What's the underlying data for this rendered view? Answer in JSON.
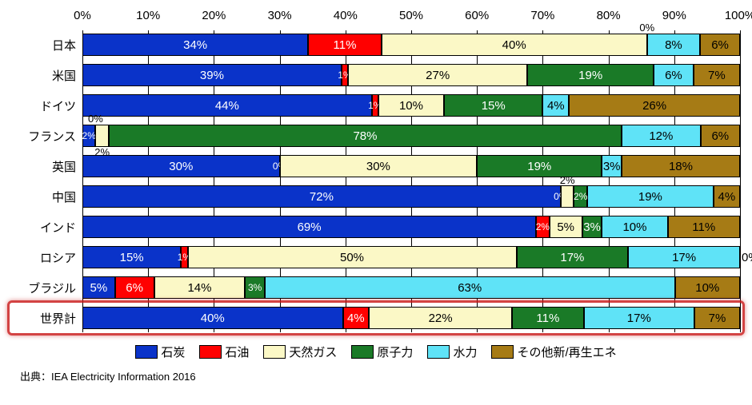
{
  "chart": {
    "type": "stacked-bar-horizontal",
    "xlim": [
      0,
      100
    ],
    "xtick_step": 10,
    "xtick_suffix": "%",
    "background_color": "#ffffff",
    "grid_color": "#000000",
    "label_fontsize": 15,
    "value_fontsize": 15,
    "categories": [
      "石炭",
      "石油",
      "天然ガス",
      "原子力",
      "水力",
      "その他新/再生エネ"
    ],
    "colors": {
      "石炭": "#0a33c9",
      "石油": "#ff0000",
      "天然ガス": "#fbf8c6",
      "原子力": "#1a7a27",
      "水力": "#5fe3f7",
      "その他新/再生エネ": "#a67b15"
    },
    "text_colors": {
      "石炭": "#ffffff",
      "石油": "#ffffff",
      "天然ガス": "#000000",
      "原子力": "#ffffff",
      "水力": "#000000",
      "その他新/再生エネ": "#000000"
    },
    "rows": [
      {
        "label": "日本",
        "values": [
          34,
          11,
          40,
          0,
          8,
          6
        ],
        "displays": [
          "34%",
          "11%",
          "40%",
          "0%",
          "8%",
          "6%"
        ],
        "positions": [
          "in",
          "in",
          "in",
          "above",
          "in",
          "in"
        ]
      },
      {
        "label": "米国",
        "values": [
          39,
          1,
          27,
          19,
          6,
          7
        ],
        "displays": [
          "39%",
          "1%",
          "27%",
          "19%",
          "6%",
          "7%"
        ],
        "positions": [
          "in",
          "in",
          "in",
          "in",
          "in",
          "in"
        ]
      },
      {
        "label": "ドイツ",
        "values": [
          44,
          1,
          10,
          15,
          4,
          26
        ],
        "displays": [
          "44%",
          "1%",
          "10%",
          "15%",
          "4%",
          "26%"
        ],
        "positions": [
          "in",
          "in",
          "in",
          "in",
          "in",
          "in"
        ]
      },
      {
        "label": "フランス",
        "values": [
          2,
          0,
          2,
          78,
          12,
          6
        ],
        "displays": [
          "2%",
          "0%",
          "2%",
          "78%",
          "12%",
          "6%"
        ],
        "positions": [
          "in",
          "above",
          "below",
          "in",
          "in",
          "in"
        ]
      },
      {
        "label": "英国",
        "values": [
          30,
          0,
          30,
          19,
          3,
          18
        ],
        "displays": [
          "30%",
          "0%",
          "30%",
          "19%",
          "3%",
          "18%"
        ],
        "positions": [
          "in",
          "in",
          "in",
          "in",
          "in",
          "in"
        ]
      },
      {
        "label": "中国",
        "values": [
          72,
          0,
          2,
          2,
          19,
          4
        ],
        "displays": [
          "72%",
          "0%",
          "2%",
          "2%",
          "19%",
          "4%"
        ],
        "positions": [
          "in",
          "in",
          "above",
          "in",
          "in",
          "in"
        ]
      },
      {
        "label": "インド",
        "values": [
          69,
          2,
          5,
          3,
          10,
          11
        ],
        "displays": [
          "69%",
          "2%",
          "5%",
          "3%",
          "10%",
          "11%"
        ],
        "positions": [
          "in",
          "in",
          "in",
          "in",
          "in",
          "in"
        ]
      },
      {
        "label": "ロシア",
        "values": [
          15,
          1,
          50,
          17,
          17,
          0
        ],
        "displays": [
          "15%",
          "1%",
          "50%",
          "17%",
          "17%",
          "0%"
        ],
        "positions": [
          "in",
          "in",
          "in",
          "in",
          "in",
          "outside-right"
        ]
      },
      {
        "label": "ブラジル",
        "values": [
          5,
          6,
          14,
          3,
          63,
          10
        ],
        "displays": [
          "5%",
          "6%",
          "14%",
          "3%",
          "63%",
          "10%"
        ],
        "positions": [
          "in",
          "in",
          "in",
          "in",
          "in",
          "in"
        ]
      },
      {
        "label": "世界計",
        "values": [
          40,
          4,
          22,
          11,
          17,
          7
        ],
        "displays": [
          "40%",
          "4%",
          "22%",
          "11%",
          "17%",
          "7%"
        ],
        "positions": [
          "in",
          "in",
          "in",
          "in",
          "in",
          "in"
        ],
        "highlight": true
      }
    ],
    "highlight_style": {
      "border_color": "rgba(200,20,20,0.8)",
      "border_width": 3,
      "border_radius": 6
    }
  },
  "source_text": "出典：IEA Electricity Information 2016"
}
